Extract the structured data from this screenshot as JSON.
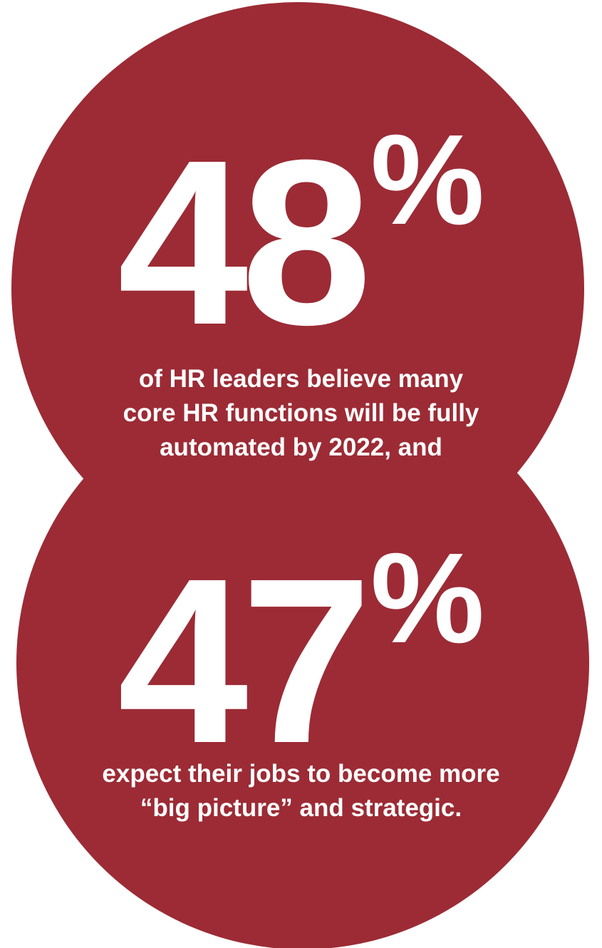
{
  "colors": {
    "circle_fill": "#9c2b35",
    "text": "#ffffff",
    "background": "#ffffff"
  },
  "stat_one": {
    "number": "48",
    "percent_sign": "%",
    "caption_lines": [
      "of HR leaders believe many",
      "core HR functions will be fully",
      "automated by 2022, and"
    ]
  },
  "stat_two": {
    "number": "47",
    "percent_sign": "%",
    "caption_lines": [
      "expect their jobs to become more",
      "“big picture” and strategic."
    ]
  }
}
